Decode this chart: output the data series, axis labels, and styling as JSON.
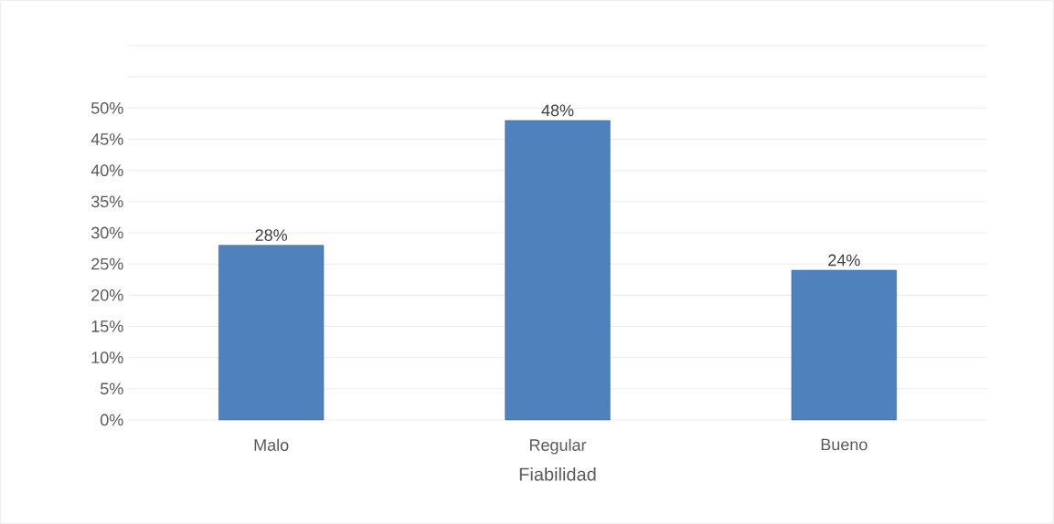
{
  "chart_data": {
    "type": "bar",
    "xlabel": "Fiabilidad",
    "categories": [
      "Malo",
      "Regular",
      "Bueno"
    ],
    "values": [
      28,
      48,
      24
    ],
    "value_labels": [
      "28%",
      "48%",
      "24%"
    ],
    "color": "#4f81bd",
    "ylim": [
      0,
      60
    ],
    "yticks": [
      {
        "value": 0,
        "label": "0%"
      },
      {
        "value": 5,
        "label": "5%"
      },
      {
        "value": 10,
        "label": "10%"
      },
      {
        "value": 15,
        "label": "15%"
      },
      {
        "value": 20,
        "label": "20%"
      },
      {
        "value": 25,
        "label": "25%"
      },
      {
        "value": 30,
        "label": "30%"
      },
      {
        "value": 35,
        "label": "35%"
      },
      {
        "value": 40,
        "label": "40%"
      },
      {
        "value": 45,
        "label": "45%"
      },
      {
        "value": 50,
        "label": "50%"
      },
      {
        "value": 55,
        "label": null
      },
      {
        "value": 60,
        "label": null
      }
    ],
    "grid": "y"
  }
}
